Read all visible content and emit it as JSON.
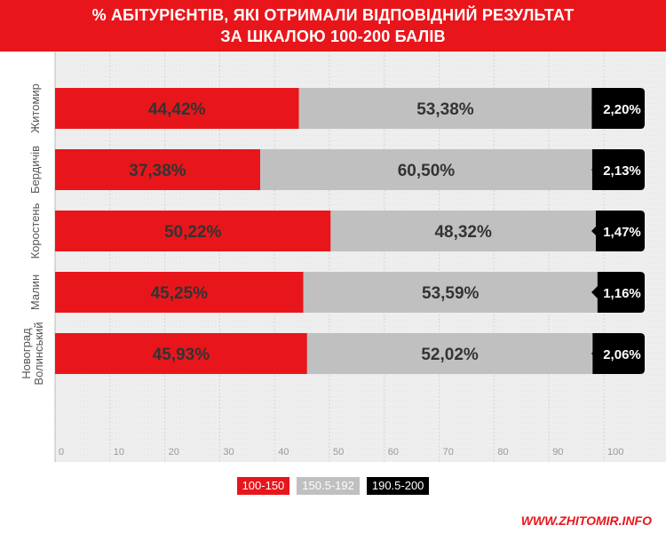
{
  "header": {
    "title_line1": "% АБІТУРІЄНТІВ, ЯКІ ОТРИМАЛИ ВІДПОВІДНИЙ РЕЗУЛЬТАТ",
    "title_line2": "ЗА ШКАЛОЮ 100-200 БАЛІВ"
  },
  "footer": {
    "source": "WWW.ZHITOMIR.INFO"
  },
  "colors": {
    "accent": "#e8161b",
    "gray": "#c0c0c0",
    "black": "#000000",
    "grid_bg": "#eeeeee"
  },
  "chart_data": {
    "type": "bar",
    "orientation": "horizontal",
    "stacked": true,
    "title": "% АБІТУРІЄНТІВ, ЯКІ ОТРИМАЛИ ВІДПОВІДНИЙ РЕЗУЛЬТАТ ЗА ШКАЛОЮ 100-200 БАЛІВ",
    "categories": [
      [
        "Житомир"
      ],
      [
        "Бердичів"
      ],
      [
        "Коростень"
      ],
      [
        "Малин"
      ],
      [
        "Новоград",
        "Волинський"
      ]
    ],
    "series": [
      {
        "name": "100-150",
        "color": "#e8161b",
        "values": [
          44.42,
          37.38,
          50.22,
          45.25,
          45.93
        ],
        "labels": [
          "44,42%",
          "37,38%",
          "50,22%",
          "45,25%",
          "45,93%"
        ]
      },
      {
        "name": "150.5-192",
        "color": "#c0c0c0",
        "values": [
          53.38,
          60.5,
          48.32,
          53.59,
          52.02
        ],
        "labels": [
          "53,38%",
          "60,50%",
          "48,32%",
          "53,59%",
          "52,02%"
        ]
      },
      {
        "name": "190.5-200",
        "color": "#000000",
        "values": [
          2.2,
          2.13,
          1.47,
          1.16,
          2.06
        ],
        "labels": [
          "2,20%",
          "2,13%",
          "1,47%",
          "1,16%",
          "2,06%"
        ]
      }
    ],
    "xlim": [
      0,
      100
    ],
    "xticks": [
      0,
      10,
      20,
      30,
      40,
      50,
      60,
      70,
      80,
      90,
      100
    ],
    "grid": true,
    "legend_position": "bottom-center"
  }
}
